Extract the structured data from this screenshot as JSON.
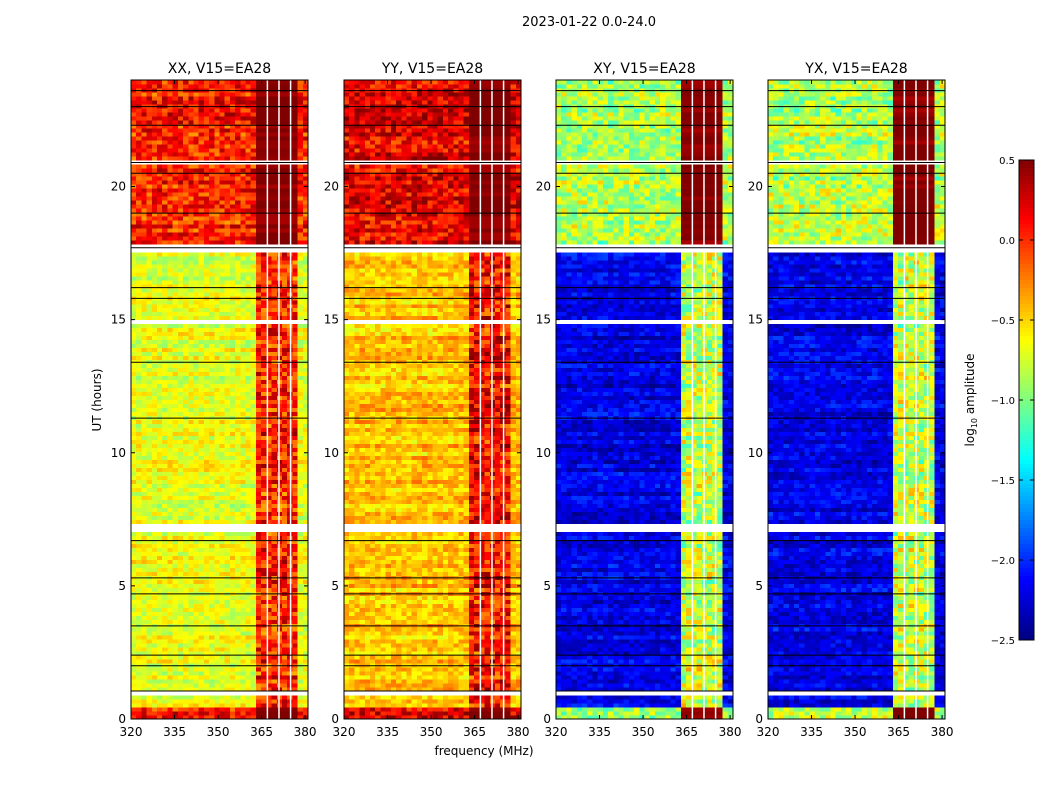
{
  "chart_data": {
    "type": "heatmap",
    "title": "2023-01-22 0.0-24.0",
    "xlabel": "frequency (MHz)",
    "ylabel": "UT (hours)",
    "xlim": [
      320,
      381
    ],
    "ylim": [
      0,
      24
    ],
    "x_ticks": [
      320,
      335,
      350,
      365,
      380
    ],
    "x_tick_labels": [
      "320",
      "335",
      "350",
      "365",
      "380"
    ],
    "y_ticks": [
      0,
      5,
      10,
      15,
      20
    ],
    "y_tick_labels": [
      "0",
      "5",
      "10",
      "15",
      "20"
    ],
    "colorbar": {
      "label": "log10 amplitude",
      "label_main": "log",
      "label_sub": "10",
      "label_tail": " amplitude",
      "range": [
        -2.5,
        0.5
      ],
      "ticks": [
        0.5,
        0.0,
        -0.5,
        -1.0,
        -1.5,
        -2.0,
        -2.5
      ],
      "tick_labels": [
        "0.5",
        "0.0",
        "−0.5",
        "−1.0",
        "−1.5",
        "−2.0",
        "−2.5"
      ],
      "colormap": "jet"
    },
    "panels": [
      {
        "name": "XX",
        "title": "XX, V15=EA28",
        "base_level": -0.7,
        "band_level": 0.0,
        "night_level": -0.3,
        "flagged_band_mhz": [
          363,
          378
        ]
      },
      {
        "name": "YY",
        "title": "YY, V15=EA28",
        "base_level": -0.45,
        "band_level": 0.1,
        "night_level": -0.15,
        "flagged_band_mhz": [
          363,
          378
        ]
      },
      {
        "name": "XY",
        "title": "XY, V15=EA28",
        "base_level": -2.2,
        "band_level": -0.8,
        "night_level": -1.2,
        "flagged_band_mhz": [
          363,
          378
        ]
      },
      {
        "name": "YX",
        "title": "YX, V15=EA28",
        "base_level": -2.2,
        "band_level": -0.8,
        "night_level": -1.2,
        "flagged_band_mhz": [
          363,
          378
        ]
      }
    ],
    "flagged_time_ranges_hours": [
      [
        0.9,
        1.1
      ],
      [
        7.1,
        7.4
      ],
      [
        14.8,
        15.0
      ],
      [
        17.6,
        17.8
      ],
      [
        20.8,
        21.0
      ]
    ],
    "high_amplitude_time_ranges_hours": [
      [
        0.0,
        0.5
      ],
      [
        17.8,
        24.0
      ]
    ]
  }
}
